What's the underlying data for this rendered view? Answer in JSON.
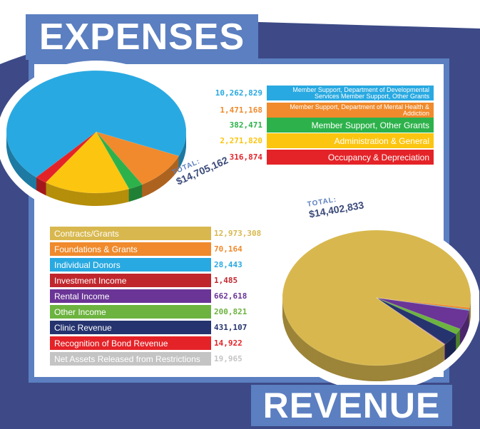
{
  "chart_data": [
    {
      "type": "pie",
      "title": "EXPENSES",
      "total_label": "TOTAL:",
      "total_value": "$14,705,162",
      "categories": [
        "Member Support, Department of Developmental Services Member Support, Other Grants",
        "Member Support, Department of Mental Health & Addiction",
        "Member Support, Other Grants",
        "Administration & General",
        "Occupancy & Depreciation"
      ],
      "display_values": [
        "10,262,829",
        "1,471,168",
        "382,471",
        "2,271,820",
        "316,874"
      ],
      "values": [
        10262829,
        1471168,
        382471,
        2271820,
        316874
      ],
      "colors": [
        "#29a9e1",
        "#f08a2c",
        "#2db24b",
        "#fcc50f",
        "#e42328"
      ]
    },
    {
      "type": "pie",
      "title": "REVENUE",
      "total_label": "TOTAL:",
      "total_value": "$14,402,833",
      "categories": [
        "Contracts/Grants",
        "Foundations & Grants",
        "Individual Donors",
        "Investment Income",
        "Rental Income",
        "Other Income",
        "Clinic Revenue",
        "Recognition of Bond Revenue",
        "Net Assets Released from Restrictions"
      ],
      "display_values": [
        "12,973,308",
        "70,164",
        "28,443",
        "1,485",
        "662,618",
        "200,821",
        "431,107",
        "14,922",
        "19,965"
      ],
      "values": [
        12973308,
        70164,
        28443,
        1485,
        662618,
        200821,
        431107,
        14922,
        19965
      ],
      "colors": [
        "#d8b84e",
        "#f08a2c",
        "#29a9e1",
        "#c0272d",
        "#6a3596",
        "#6cb33f",
        "#25346f",
        "#e42328",
        "#c4c4c4"
      ]
    }
  ],
  "colors": {
    "accent": "#5b7fc0",
    "background_navy": "#3d4a87"
  }
}
